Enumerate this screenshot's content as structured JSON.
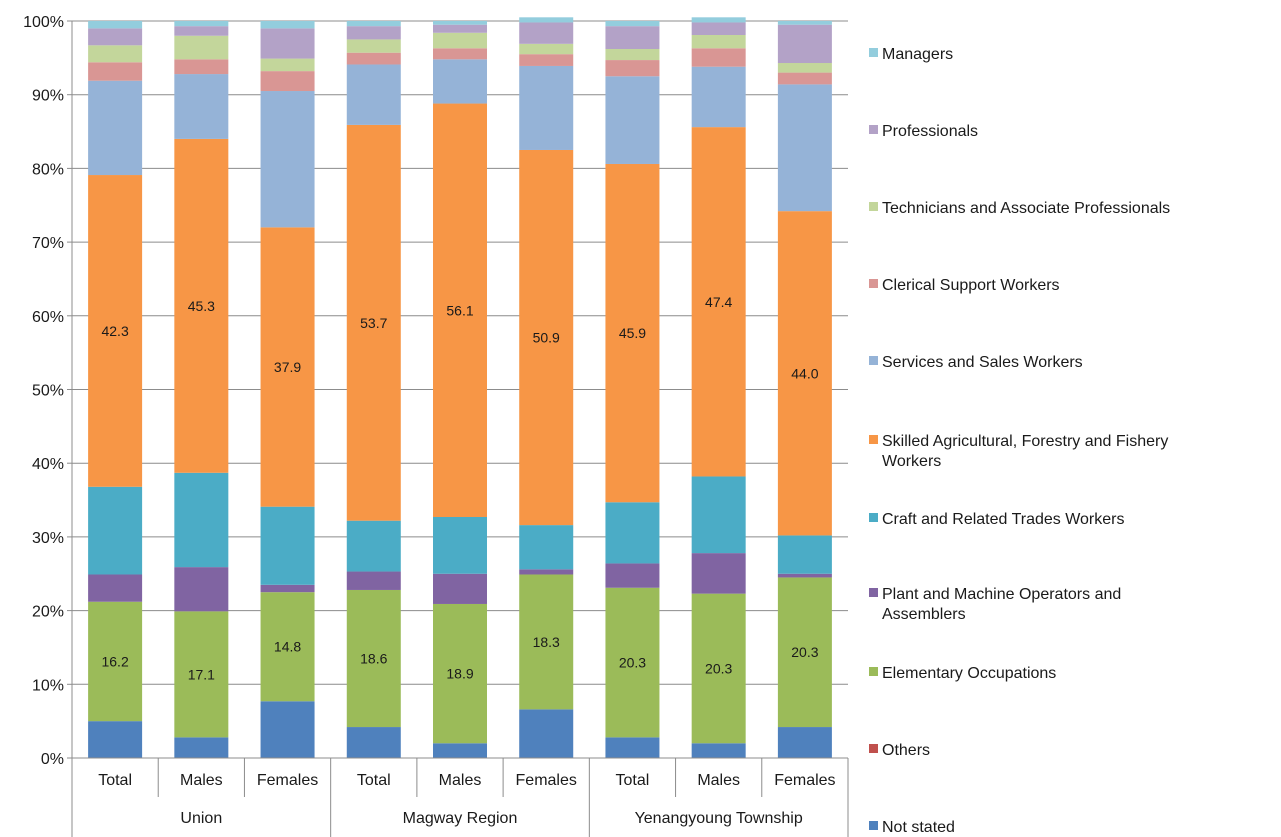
{
  "chart_data": {
    "type": "bar",
    "stacked": true,
    "percent_stacked": true,
    "ylim": [
      0,
      100
    ],
    "y_ticks": [
      "0%",
      "10%",
      "20%",
      "30%",
      "40%",
      "50%",
      "60%",
      "70%",
      "80%",
      "90%",
      "100%"
    ],
    "grid": true,
    "legend_position": "right",
    "categories": [
      "Total",
      "Males",
      "Females",
      "Total",
      "Males",
      "Females",
      "Total",
      "Males",
      "Females"
    ],
    "groups": [
      {
        "label": "Union",
        "span": 3
      },
      {
        "label": "Magway Region",
        "span": 3
      },
      {
        "label": "Yenangyoung Township",
        "span": 3
      }
    ],
    "series": [
      {
        "name": "Not stated",
        "color": "#4f81bd",
        "values": [
          5.0,
          2.8,
          7.7,
          4.2,
          2.0,
          6.6,
          2.8,
          2.0,
          4.2
        ]
      },
      {
        "name": "Others",
        "color": "#c0504d",
        "values": [
          0.0,
          0.0,
          0.0,
          0.0,
          0.0,
          0.0,
          0.0,
          0.0,
          0.0
        ]
      },
      {
        "name": "Elementary Occupations",
        "color": "#9bbb59",
        "values": [
          16.2,
          17.1,
          14.8,
          18.6,
          18.9,
          18.3,
          20.3,
          20.3,
          20.3
        ],
        "labels": [
          "16.2",
          "17.1",
          "14.8",
          "18.6",
          "18.9",
          "18.3",
          "20.3",
          "20.3",
          "20.3"
        ]
      },
      {
        "name": "Plant and Machine Operators and Assemblers",
        "color": "#8064a2",
        "values": [
          3.7,
          6.0,
          1.0,
          2.5,
          4.1,
          0.7,
          3.3,
          5.5,
          0.5
        ]
      },
      {
        "name": "Craft and Related Trades Workers",
        "color": "#4bacc6",
        "values": [
          11.9,
          12.8,
          10.6,
          6.9,
          7.7,
          6.0,
          8.3,
          10.4,
          5.2
        ]
      },
      {
        "name": "Skilled Agricultural, Forestry and Fishery Workers",
        "color": "#f79646",
        "values": [
          42.3,
          45.3,
          37.9,
          53.7,
          56.1,
          50.9,
          45.9,
          47.4,
          44.0
        ],
        "labels": [
          "42.3",
          "45.3",
          "37.9",
          "53.7",
          "56.1",
          "50.9",
          "45.9",
          "47.4",
          "44.0"
        ]
      },
      {
        "name": "Services and Sales Workers",
        "color": "#95b3d7",
        "values": [
          12.8,
          8.8,
          18.5,
          8.2,
          6.0,
          11.4,
          11.9,
          8.2,
          17.2
        ]
      },
      {
        "name": "Clerical Support Workers",
        "color": "#d99694",
        "values": [
          2.5,
          2.0,
          2.7,
          1.6,
          1.5,
          1.6,
          2.2,
          2.5,
          1.6
        ]
      },
      {
        "name": "Technicians and Associate Professionals",
        "color": "#c3d69b",
        "values": [
          2.3,
          3.2,
          1.7,
          1.8,
          2.1,
          1.4,
          1.5,
          1.8,
          1.3
        ]
      },
      {
        "name": "Professionals",
        "color": "#b3a2c7",
        "values": [
          2.3,
          1.3,
          4.1,
          1.8,
          1.1,
          2.9,
          3.1,
          1.7,
          5.2
        ]
      },
      {
        "name": "Managers",
        "color": "#93cddd",
        "values": [
          1.0,
          0.7,
          1.0,
          0.7,
          0.5,
          0.7,
          0.7,
          0.7,
          0.5
        ]
      }
    ],
    "legend_order": [
      "Managers",
      "Professionals",
      "Technicians and Associate Professionals",
      "Clerical Support Workers",
      "Services and Sales Workers",
      "Skilled Agricultural, Forestry and Fishery Workers",
      "Craft and Related Trades Workers",
      "Plant and Machine Operators and Assemblers",
      "Elementary Occupations",
      "Others",
      "Not stated"
    ]
  }
}
